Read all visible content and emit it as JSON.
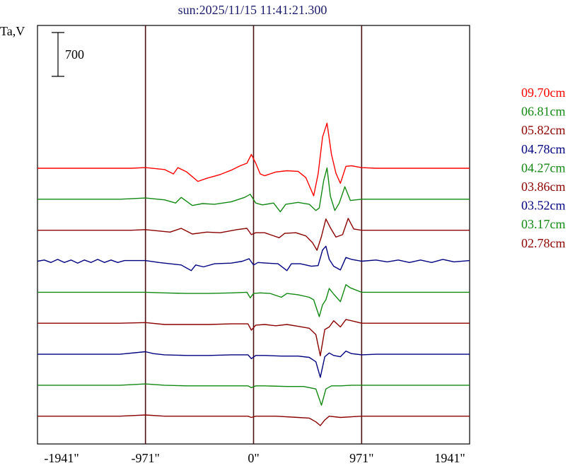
{
  "chart_data": {
    "type": "line",
    "title": "sun:2025/11/15 11:41:21.300",
    "ylabel": "Ta,V",
    "scale_bar_label": "700",
    "scale_bar_value": 700,
    "xlim": [
      -1941,
      1941
    ],
    "x_ticks": [
      -1941,
      -971,
      0,
      971,
      1941
    ],
    "x_tick_labels": [
      "-1941\"",
      "-971\"",
      "0\"",
      "971\"",
      "1941\""
    ],
    "vertical_lines_at": [
      -971,
      0,
      971
    ],
    "grid": false,
    "legend_position": "right",
    "colors": {
      "title": "#1c1c6e",
      "frame": "#000000",
      "vline": "#4a1212",
      "red": "#ff0000",
      "green": "#118811",
      "darkred": "#8b0000",
      "blue": "#000080"
    },
    "series": [
      {
        "name": "09.70cm",
        "color": "#ff0000",
        "baseline": 4200,
        "points": [
          [
            -1941,
            0
          ],
          [
            -1100,
            0
          ],
          [
            -971,
            10
          ],
          [
            -800,
            -20
          ],
          [
            -720,
            -90
          ],
          [
            -680,
            10
          ],
          [
            -600,
            -60
          ],
          [
            -500,
            -210
          ],
          [
            -420,
            -160
          ],
          [
            -300,
            -100
          ],
          [
            -200,
            -30
          ],
          [
            -120,
            40
          ],
          [
            -60,
            80
          ],
          [
            -20,
            220
          ],
          [
            20,
            80
          ],
          [
            60,
            -90
          ],
          [
            100,
            -120
          ],
          [
            200,
            -60
          ],
          [
            300,
            -40
          ],
          [
            400,
            -50
          ],
          [
            470,
            -150
          ],
          [
            540,
            -440
          ],
          [
            580,
            -90
          ],
          [
            620,
            500
          ],
          [
            660,
            720
          ],
          [
            700,
            220
          ],
          [
            740,
            -80
          ],
          [
            780,
            -240
          ],
          [
            830,
            30
          ],
          [
            880,
            40
          ],
          [
            971,
            10
          ],
          [
            1100,
            0
          ],
          [
            1941,
            0
          ]
        ]
      },
      {
        "name": "06.81cm",
        "color": "#118811",
        "baseline": 3705,
        "points": [
          [
            -1941,
            0
          ],
          [
            -1200,
            0
          ],
          [
            -971,
            20
          ],
          [
            -800,
            -10
          ],
          [
            -700,
            -60
          ],
          [
            -650,
            30
          ],
          [
            -550,
            -100
          ],
          [
            -460,
            -70
          ],
          [
            -350,
            -80
          ],
          [
            -200,
            -40
          ],
          [
            -80,
            30
          ],
          [
            -30,
            80
          ],
          [
            20,
            -60
          ],
          [
            80,
            -90
          ],
          [
            180,
            -60
          ],
          [
            240,
            -200
          ],
          [
            290,
            -80
          ],
          [
            400,
            -50
          ],
          [
            500,
            -80
          ],
          [
            560,
            -180
          ],
          [
            590,
            -140
          ],
          [
            630,
            300
          ],
          [
            660,
            500
          ],
          [
            690,
            50
          ],
          [
            730,
            -180
          ],
          [
            770,
            -60
          ],
          [
            820,
            200
          ],
          [
            870,
            -20
          ],
          [
            971,
            0
          ],
          [
            1100,
            0
          ],
          [
            1941,
            0
          ]
        ]
      },
      {
        "name": "05.82cm",
        "color": "#8b0000",
        "baseline": 3210,
        "points": [
          [
            -1941,
            0
          ],
          [
            -1100,
            0
          ],
          [
            -971,
            10
          ],
          [
            -750,
            -30
          ],
          [
            -650,
            30
          ],
          [
            -550,
            -60
          ],
          [
            -420,
            -30
          ],
          [
            -300,
            -40
          ],
          [
            -150,
            10
          ],
          [
            -60,
            30
          ],
          [
            -20,
            -70
          ],
          [
            20,
            -40
          ],
          [
            100,
            -40
          ],
          [
            230,
            -120
          ],
          [
            280,
            -50
          ],
          [
            380,
            -40
          ],
          [
            470,
            -90
          ],
          [
            530,
            -200
          ],
          [
            570,
            -320
          ],
          [
            610,
            -100
          ],
          [
            650,
            180
          ],
          [
            690,
            40
          ],
          [
            740,
            -110
          ],
          [
            800,
            -70
          ],
          [
            850,
            190
          ],
          [
            900,
            20
          ],
          [
            971,
            0
          ],
          [
            1100,
            0
          ],
          [
            1941,
            0
          ]
        ]
      },
      {
        "name": "04.78cm",
        "color": "#000080",
        "baseline": 2715,
        "points": [
          [
            -1941,
            0
          ],
          [
            -1880,
            20
          ],
          [
            -1820,
            -20
          ],
          [
            -1760,
            30
          ],
          [
            -1700,
            -20
          ],
          [
            -1640,
            20
          ],
          [
            -1580,
            -30
          ],
          [
            -1520,
            20
          ],
          [
            -1460,
            -20
          ],
          [
            -1400,
            30
          ],
          [
            -1340,
            -20
          ],
          [
            -1280,
            20
          ],
          [
            -1220,
            -20
          ],
          [
            -1160,
            10
          ],
          [
            -971,
            10
          ],
          [
            -850,
            -20
          ],
          [
            -650,
            -60
          ],
          [
            -560,
            -150
          ],
          [
            -520,
            -60
          ],
          [
            -450,
            -90
          ],
          [
            -350,
            -40
          ],
          [
            -200,
            -30
          ],
          [
            -100,
            0
          ],
          [
            -40,
            40
          ],
          [
            0,
            -60
          ],
          [
            40,
            -20
          ],
          [
            120,
            -30
          ],
          [
            220,
            -40
          ],
          [
            300,
            -150
          ],
          [
            340,
            -40
          ],
          [
            420,
            -40
          ],
          [
            520,
            -80
          ],
          [
            580,
            -70
          ],
          [
            620,
            180
          ],
          [
            650,
            240
          ],
          [
            680,
            30
          ],
          [
            720,
            -80
          ],
          [
            780,
            -140
          ],
          [
            830,
            60
          ],
          [
            880,
            30
          ],
          [
            971,
            0
          ],
          [
            1100,
            20
          ],
          [
            1200,
            -10
          ],
          [
            1300,
            20
          ],
          [
            1400,
            -20
          ],
          [
            1500,
            20
          ],
          [
            1600,
            -20
          ],
          [
            1700,
            30
          ],
          [
            1800,
            -10
          ],
          [
            1941,
            10
          ]
        ]
      },
      {
        "name": "04.27cm",
        "color": "#118811",
        "baseline": 2220,
        "points": [
          [
            -1941,
            0
          ],
          [
            -1200,
            0
          ],
          [
            -971,
            0
          ],
          [
            -800,
            -10
          ],
          [
            -600,
            -20
          ],
          [
            -400,
            -20
          ],
          [
            -200,
            -10
          ],
          [
            -60,
            0
          ],
          [
            -30,
            -90
          ],
          [
            0,
            -20
          ],
          [
            60,
            -10
          ],
          [
            150,
            -20
          ],
          [
            250,
            -80
          ],
          [
            300,
            -20
          ],
          [
            400,
            -40
          ],
          [
            500,
            -80
          ],
          [
            540,
            -120
          ],
          [
            590,
            -390
          ],
          [
            620,
            -200
          ],
          [
            650,
            -120
          ],
          [
            680,
            60
          ],
          [
            720,
            -30
          ],
          [
            780,
            -150
          ],
          [
            830,
            120
          ],
          [
            870,
            70
          ],
          [
            971,
            0
          ],
          [
            1100,
            0
          ],
          [
            1941,
            0
          ]
        ]
      },
      {
        "name": "03.86cm",
        "color": "#8b0000",
        "baseline": 1725,
        "points": [
          [
            -1941,
            0
          ],
          [
            -1200,
            0
          ],
          [
            -971,
            10
          ],
          [
            -800,
            -20
          ],
          [
            -600,
            -20
          ],
          [
            -400,
            -20
          ],
          [
            -200,
            -10
          ],
          [
            -50,
            -10
          ],
          [
            -20,
            -110
          ],
          [
            20,
            -30
          ],
          [
            100,
            -20
          ],
          [
            200,
            -40
          ],
          [
            300,
            -20
          ],
          [
            400,
            -50
          ],
          [
            500,
            -80
          ],
          [
            560,
            -180
          ],
          [
            600,
            -520
          ],
          [
            640,
            -100
          ],
          [
            680,
            -60
          ],
          [
            720,
            40
          ],
          [
            780,
            -60
          ],
          [
            830,
            60
          ],
          [
            880,
            40
          ],
          [
            971,
            0
          ],
          [
            1100,
            0
          ],
          [
            1941,
            0
          ]
        ]
      },
      {
        "name": "03.52cm",
        "color": "#000080",
        "baseline": 1230,
        "points": [
          [
            -1941,
            0
          ],
          [
            -1200,
            0
          ],
          [
            -971,
            40
          ],
          [
            -900,
            10
          ],
          [
            -800,
            -10
          ],
          [
            -600,
            -20
          ],
          [
            -400,
            -20
          ],
          [
            -200,
            -10
          ],
          [
            -50,
            -10
          ],
          [
            -20,
            -70
          ],
          [
            20,
            -20
          ],
          [
            100,
            -20
          ],
          [
            250,
            -30
          ],
          [
            400,
            -30
          ],
          [
            500,
            -50
          ],
          [
            560,
            -120
          ],
          [
            600,
            -370
          ],
          [
            640,
            -40
          ],
          [
            680,
            20
          ],
          [
            720,
            -20
          ],
          [
            780,
            -40
          ],
          [
            830,
            50
          ],
          [
            880,
            10
          ],
          [
            971,
            -10
          ],
          [
            1100,
            0
          ],
          [
            1941,
            0
          ]
        ]
      },
      {
        "name": "03.17cm",
        "color": "#118811",
        "baseline": 735,
        "points": [
          [
            -1941,
            0
          ],
          [
            -1200,
            0
          ],
          [
            -971,
            20
          ],
          [
            -800,
            0
          ],
          [
            -600,
            -10
          ],
          [
            -400,
            -10
          ],
          [
            -200,
            -10
          ],
          [
            -50,
            -10
          ],
          [
            -20,
            -40
          ],
          [
            20,
            -10
          ],
          [
            100,
            -10
          ],
          [
            300,
            -20
          ],
          [
            450,
            -20
          ],
          [
            560,
            -60
          ],
          [
            610,
            -320
          ],
          [
            650,
            -60
          ],
          [
            700,
            -10
          ],
          [
            780,
            -10
          ],
          [
            880,
            0
          ],
          [
            971,
            0
          ],
          [
            1100,
            0
          ],
          [
            1941,
            0
          ]
        ]
      },
      {
        "name": "02.78cm",
        "color": "#8b0000",
        "baseline": 240,
        "points": [
          [
            -1941,
            0
          ],
          [
            -1200,
            0
          ],
          [
            -971,
            20
          ],
          [
            -800,
            0
          ],
          [
            -600,
            0
          ],
          [
            -300,
            0
          ],
          [
            -50,
            0
          ],
          [
            -20,
            -20
          ],
          [
            20,
            0
          ],
          [
            200,
            0
          ],
          [
            400,
            -20
          ],
          [
            500,
            -30
          ],
          [
            560,
            -90
          ],
          [
            600,
            -150
          ],
          [
            640,
            -60
          ],
          [
            680,
            0
          ],
          [
            780,
            -20
          ],
          [
            971,
            0
          ],
          [
            1100,
            0
          ],
          [
            1941,
            0
          ]
        ]
      }
    ]
  }
}
